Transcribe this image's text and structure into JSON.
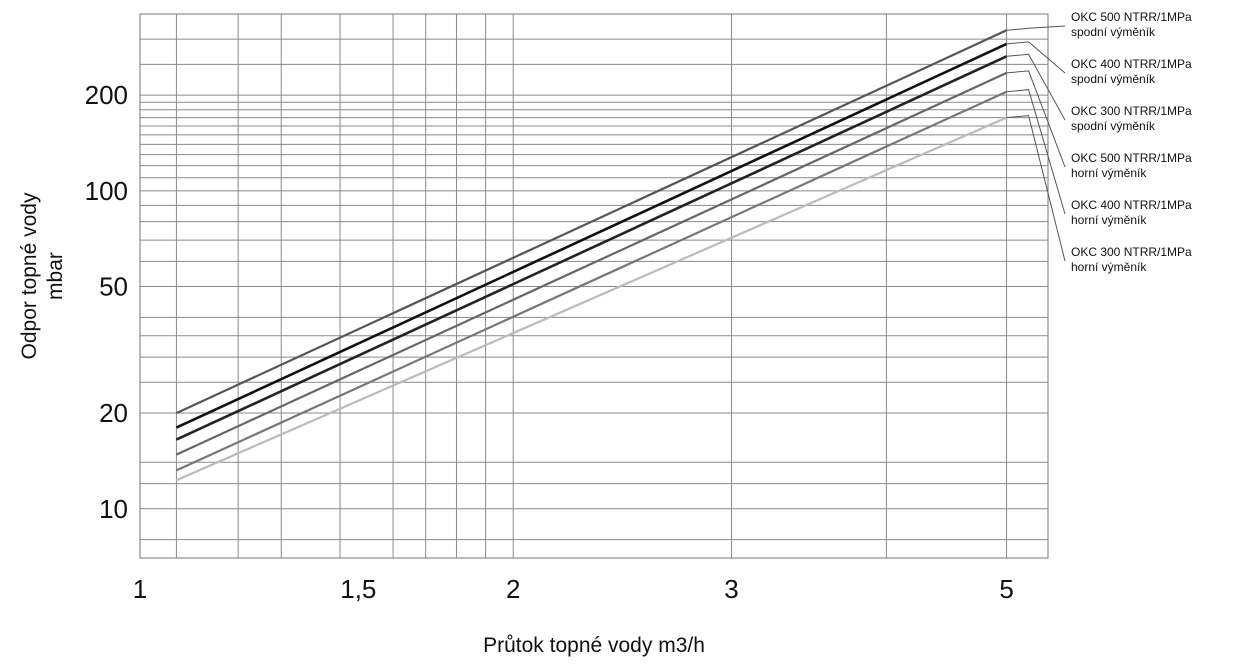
{
  "chart_data": {
    "type": "line",
    "xlabel": "Průtok topné vody  m3/h",
    "ylabel_lines": [
      "Odpor topné vody",
      "mbar"
    ],
    "x_scale": "log",
    "y_scale": "log",
    "xlim": [
      1,
      5.4
    ],
    "ylim": [
      7,
      360
    ],
    "x_ticks": [
      {
        "value": 1,
        "label": "1"
      },
      {
        "value": 1.5,
        "label": "1,5"
      },
      {
        "value": 2,
        "label": "2"
      },
      {
        "value": 3,
        "label": "3"
      },
      {
        "value": 5,
        "label": "5"
      }
    ],
    "y_ticks": [
      {
        "value": 10,
        "label": "10"
      },
      {
        "value": 20,
        "label": "20"
      },
      {
        "value": 50,
        "label": "50"
      },
      {
        "value": 100,
        "label": "100"
      },
      {
        "value": 200,
        "label": "200"
      }
    ],
    "grid": true,
    "x_gridlines": [
      1.07,
      1.2,
      1.3,
      1.45,
      1.6,
      1.7,
      1.8,
      1.9,
      2,
      3,
      4,
      5
    ],
    "y_gridlines": [
      8,
      10,
      12,
      14,
      20,
      25,
      30,
      35,
      40,
      50,
      60,
      70,
      80,
      90,
      100,
      110,
      120,
      130,
      140,
      150,
      160,
      170,
      180,
      190,
      200,
      250,
      300
    ],
    "legend_position": "right",
    "series": [
      {
        "legend_lines": [
          "OKC 500 NTRR/1MPa",
          "spodní výměník"
        ],
        "color": "#555555",
        "width": 2.2,
        "x": [
          1.07,
          5
        ],
        "y": [
          20,
          320
        ]
      },
      {
        "legend_lines": [
          "OKC 400 NTRR/1MPa",
          "spodní výměník"
        ],
        "color": "#111111",
        "width": 2.6,
        "x": [
          1.07,
          5
        ],
        "y": [
          18,
          290
        ]
      },
      {
        "legend_lines": [
          "OKC 300 NTRR/1MPa",
          "spodní výměník"
        ],
        "color": "#222222",
        "width": 2.6,
        "x": [
          1.07,
          5
        ],
        "y": [
          16.5,
          265
        ]
      },
      {
        "legend_lines": [
          "OKC 500 NTRR/1MPa",
          "horní výměník"
        ],
        "color": "#666666",
        "width": 2.2,
        "x": [
          1.07,
          5
        ],
        "y": [
          14.8,
          235
        ]
      },
      {
        "legend_lines": [
          "OKC 400 NTRR/1MPa",
          "horní výměník"
        ],
        "color": "#777777",
        "width": 2.2,
        "x": [
          1.07,
          5
        ],
        "y": [
          13.2,
          205
        ]
      },
      {
        "legend_lines": [
          "OKC 300 NTRR/1MPa",
          "horní výměník"
        ],
        "color": "#bbbbbb",
        "width": 2.2,
        "x": [
          1.07,
          5
        ],
        "y": [
          12.3,
          170
        ]
      }
    ]
  }
}
